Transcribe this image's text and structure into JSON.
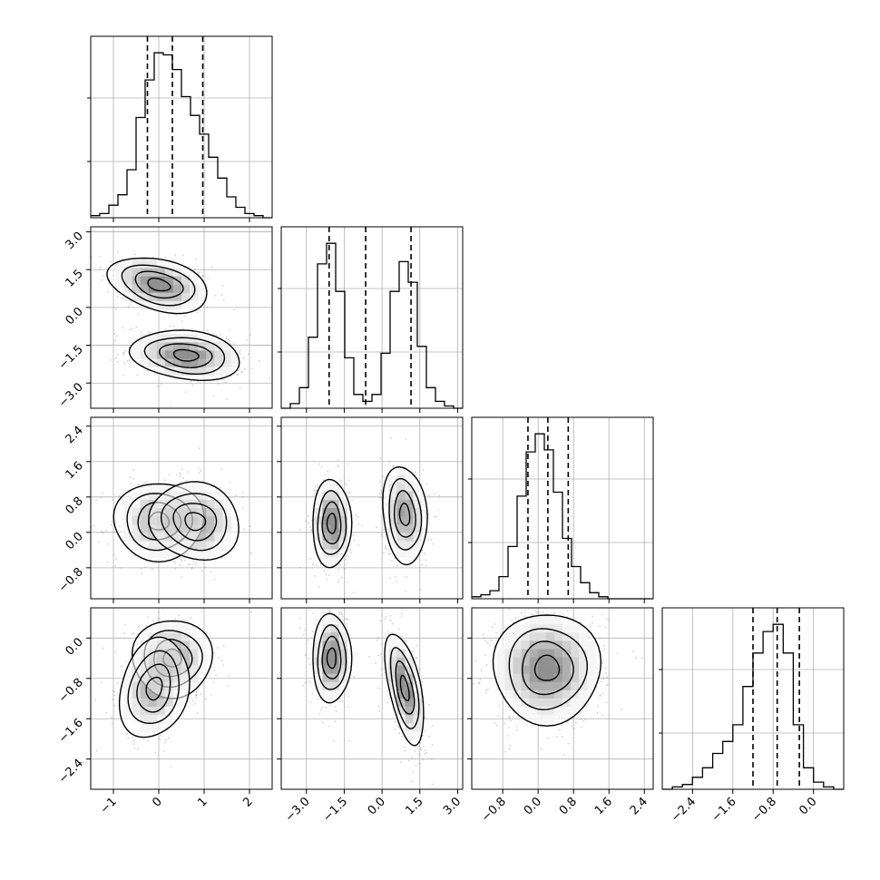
{
  "chart_data": {
    "type": "corner",
    "n_params": 4,
    "grid": true,
    "axes": [
      {
        "range": [
          -1.5,
          2.5
        ],
        "ticks": [
          -1,
          0,
          1,
          2
        ],
        "tick_labels": [
          "−1",
          "0",
          "1",
          "2"
        ]
      },
      {
        "range": [
          -4.0,
          3.2
        ],
        "ticks": [
          -3.0,
          -1.5,
          0.0,
          1.5,
          3.0
        ],
        "tick_labels": [
          "−3.0",
          "−1.5",
          "0.0",
          "1.5",
          "3.0"
        ]
      },
      {
        "range": [
          -1.5,
          2.6
        ],
        "ticks": [
          -0.8,
          0.0,
          0.8,
          1.6,
          2.4
        ],
        "tick_labels": [
          "−0.8",
          "0.0",
          "0.8",
          "1.6",
          "2.4"
        ]
      },
      {
        "range": [
          -3.0,
          0.6
        ],
        "ticks": [
          -2.4,
          -1.6,
          -0.8,
          0.0
        ],
        "tick_labels": [
          "−2.4",
          "−1.6",
          "−0.8",
          "0.0"
        ]
      }
    ],
    "histograms": [
      {
        "param": 0,
        "bins": [
          -1.5,
          2.5
        ],
        "counts": [
          1,
          2,
          6,
          11,
          23,
          48,
          66,
          79,
          78,
          71,
          58,
          49,
          40,
          29,
          19,
          10,
          5,
          2,
          1,
          0
        ],
        "quantiles": [
          -0.25,
          0.3,
          0.97
        ]
      },
      {
        "param": 1,
        "bins": [
          -4.0,
          3.2
        ],
        "counts": [
          0,
          2,
          9,
          31,
          63,
          72,
          51,
          22,
          6,
          3,
          6,
          24,
          51,
          64,
          55,
          27,
          9,
          3,
          1,
          0
        ],
        "quantiles": [
          -2.1,
          -0.65,
          1.15
        ]
      },
      {
        "param": 2,
        "bins": [
          -1.5,
          2.6
        ],
        "counts": [
          1,
          2,
          4,
          11,
          26,
          51,
          73,
          82,
          74,
          53,
          30,
          16,
          8,
          3,
          1,
          0,
          0,
          0,
          0,
          0
        ],
        "quantiles": [
          -0.23,
          0.22,
          0.68
        ]
      },
      {
        "param": 3,
        "bins": [
          -3.0,
          0.6
        ],
        "counts": [
          0,
          1,
          2,
          5,
          9,
          15,
          20,
          27,
          43,
          57,
          66,
          69,
          57,
          27,
          9,
          3,
          1,
          0
        ],
        "quantiles": [
          -1.2,
          -0.72,
          -0.28
        ]
      }
    ],
    "pair_plots": [
      {
        "x": 0,
        "y": 1,
        "components": [
          {
            "mean": [
              0.0,
              0.9
            ],
            "sd": [
              0.5,
              0.5
            ],
            "rho": -0.35,
            "weight": 0.5
          },
          {
            "mean": [
              0.6,
              -1.9
            ],
            "sd": [
              0.55,
              0.45
            ],
            "rho": -0.2,
            "weight": 0.5
          }
        ]
      },
      {
        "x": 0,
        "y": 2,
        "components": [
          {
            "mean": [
              0.0,
              0.25
            ],
            "sd": [
              0.45,
              0.4
            ],
            "rho": 0.0,
            "weight": 0.45
          },
          {
            "mean": [
              0.8,
              0.25
            ],
            "sd": [
              0.45,
              0.4
            ],
            "rho": -0.1,
            "weight": 0.55
          }
        ]
      },
      {
        "x": 1,
        "y": 2,
        "components": [
          {
            "mean": [
              -2.0,
              0.2
            ],
            "sd": [
              0.35,
              0.45
            ],
            "rho": 0.0,
            "weight": 0.5
          },
          {
            "mean": [
              0.9,
              0.4
            ],
            "sd": [
              0.4,
              0.5
            ],
            "rho": -0.15,
            "weight": 0.5
          }
        ]
      },
      {
        "x": 0,
        "y": 3,
        "components": [
          {
            "mean": [
              0.3,
              -0.4
            ],
            "sd": [
              0.4,
              0.35
            ],
            "rho": 0.0,
            "weight": 0.5
          },
          {
            "mean": [
              -0.1,
              -1.0
            ],
            "sd": [
              0.35,
              0.45
            ],
            "rho": 0.2,
            "weight": 0.5
          }
        ]
      },
      {
        "x": 1,
        "y": 3,
        "components": [
          {
            "mean": [
              -2.0,
              -0.4
            ],
            "sd": [
              0.35,
              0.4
            ],
            "rho": 0.0,
            "weight": 0.5
          },
          {
            "mean": [
              0.9,
              -1.0
            ],
            "sd": [
              0.35,
              0.5
            ],
            "rho": -0.55,
            "weight": 0.5
          }
        ]
      },
      {
        "x": 2,
        "y": 3,
        "components": [
          {
            "mean": [
              0.2,
              -0.6
            ],
            "sd": [
              0.55,
              0.5
            ],
            "rho": 0.0,
            "weight": 1.0
          }
        ]
      }
    ]
  }
}
